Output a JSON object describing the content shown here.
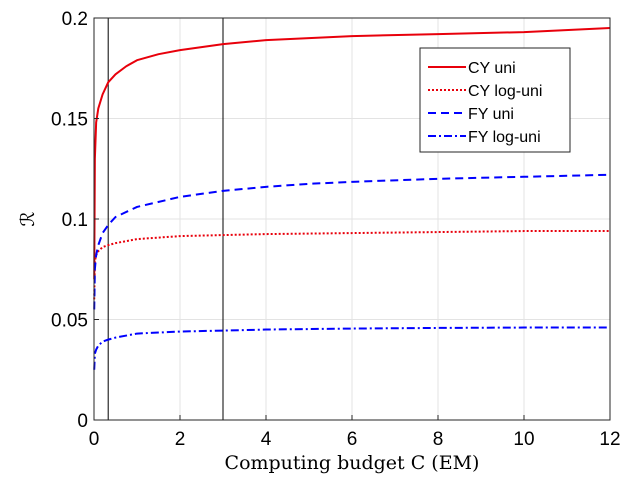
{
  "chart_data": {
    "type": "line",
    "xlabel": "Computing budget C (EM)",
    "ylabel": "ℛ",
    "xlim": [
      0,
      12
    ],
    "ylim": [
      0,
      0.2
    ],
    "xticks": [
      "0",
      "2",
      "4",
      "6",
      "8",
      "10",
      "12"
    ],
    "yticks": [
      "0",
      "0.05",
      "0.1",
      "0.15",
      "0.2"
    ],
    "grid": true,
    "legend_position": "top-right",
    "vertical_lines_x": [
      0.33,
      3.0
    ],
    "series": [
      {
        "name": "CY  uni",
        "color": "#e8000b",
        "dash": "solid",
        "x": [
          0.005,
          0.02,
          0.05,
          0.1,
          0.2,
          0.33,
          0.5,
          0.75,
          1,
          1.5,
          2,
          3,
          4,
          5,
          6,
          8,
          10,
          12
        ],
        "y": [
          0.07,
          0.13,
          0.148,
          0.155,
          0.162,
          0.168,
          0.172,
          0.176,
          0.179,
          0.182,
          0.184,
          0.187,
          0.189,
          0.19,
          0.191,
          0.192,
          0.193,
          0.195
        ]
      },
      {
        "name": "CY log-uni",
        "color": "#e8000b",
        "dash": "dotted",
        "x": [
          0.005,
          0.02,
          0.05,
          0.1,
          0.2,
          0.33,
          0.5,
          1,
          2,
          3,
          4,
          6,
          8,
          10,
          12
        ],
        "y": [
          0.06,
          0.079,
          0.082,
          0.084,
          0.086,
          0.087,
          0.088,
          0.09,
          0.0915,
          0.092,
          0.0925,
          0.093,
          0.0935,
          0.094,
          0.094
        ]
      },
      {
        "name": "FY uni",
        "color": "#0000ff",
        "dash": "dashed",
        "x": [
          0.005,
          0.02,
          0.05,
          0.1,
          0.2,
          0.33,
          0.5,
          1,
          2,
          3,
          4,
          5,
          6,
          8,
          10,
          12
        ],
        "y": [
          0.055,
          0.075,
          0.082,
          0.087,
          0.093,
          0.097,
          0.101,
          0.106,
          0.111,
          0.114,
          0.116,
          0.1175,
          0.1185,
          0.12,
          0.121,
          0.122
        ]
      },
      {
        "name": "FY log-uni",
        "color": "#0000ff",
        "dash": "dashdot",
        "x": [
          0.005,
          0.02,
          0.05,
          0.1,
          0.2,
          0.33,
          0.5,
          1,
          2,
          3,
          4,
          6,
          8,
          10,
          12
        ],
        "y": [
          0.025,
          0.033,
          0.035,
          0.037,
          0.039,
          0.04,
          0.041,
          0.043,
          0.044,
          0.0445,
          0.045,
          0.0455,
          0.0458,
          0.046,
          0.046
        ]
      }
    ]
  }
}
